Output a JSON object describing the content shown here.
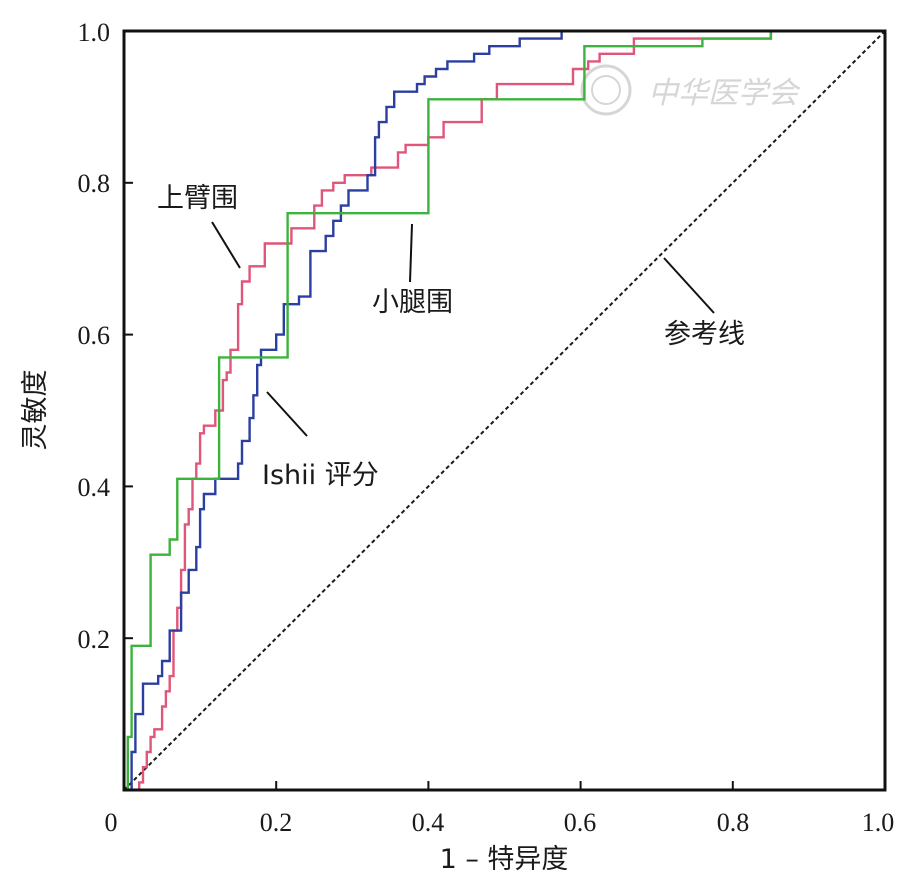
{
  "chart_data": {
    "type": "line",
    "xlabel": "1 – 特异度",
    "ylabel": "灵敏度",
    "xlim": [
      0,
      1
    ],
    "ylim": [
      0,
      1
    ],
    "x_ticks": [
      "0",
      "0.2",
      "0.4",
      "0.6",
      "0.8",
      "1.0"
    ],
    "y_ticks": [
      "0.2",
      "0.4",
      "0.6",
      "0.8",
      "1.0"
    ],
    "grid": false,
    "legend": "none",
    "watermark": "中华医学会",
    "series": [
      {
        "name": "Ishii 评分",
        "color": "#2b3fa0",
        "points": [
          [
            0,
            0
          ],
          [
            0.01,
            0
          ],
          [
            0.01,
            0.05
          ],
          [
            0.015,
            0.05
          ],
          [
            0.015,
            0.1
          ],
          [
            0.025,
            0.1
          ],
          [
            0.025,
            0.14
          ],
          [
            0.045,
            0.14
          ],
          [
            0.045,
            0.15
          ],
          [
            0.05,
            0.15
          ],
          [
            0.05,
            0.17
          ],
          [
            0.06,
            0.17
          ],
          [
            0.06,
            0.21
          ],
          [
            0.075,
            0.21
          ],
          [
            0.075,
            0.26
          ],
          [
            0.085,
            0.26
          ],
          [
            0.085,
            0.29
          ],
          [
            0.095,
            0.29
          ],
          [
            0.095,
            0.32
          ],
          [
            0.1,
            0.32
          ],
          [
            0.1,
            0.37
          ],
          [
            0.105,
            0.37
          ],
          [
            0.105,
            0.39
          ],
          [
            0.12,
            0.39
          ],
          [
            0.12,
            0.41
          ],
          [
            0.15,
            0.41
          ],
          [
            0.15,
            0.43
          ],
          [
            0.155,
            0.43
          ],
          [
            0.155,
            0.46
          ],
          [
            0.165,
            0.46
          ],
          [
            0.165,
            0.49
          ],
          [
            0.17,
            0.49
          ],
          [
            0.17,
            0.52
          ],
          [
            0.175,
            0.52
          ],
          [
            0.175,
            0.56
          ],
          [
            0.18,
            0.56
          ],
          [
            0.18,
            0.58
          ],
          [
            0.2,
            0.58
          ],
          [
            0.2,
            0.6
          ],
          [
            0.21,
            0.6
          ],
          [
            0.21,
            0.64
          ],
          [
            0.23,
            0.64
          ],
          [
            0.23,
            0.65
          ],
          [
            0.245,
            0.65
          ],
          [
            0.245,
            0.71
          ],
          [
            0.265,
            0.71
          ],
          [
            0.265,
            0.73
          ],
          [
            0.275,
            0.73
          ],
          [
            0.275,
            0.75
          ],
          [
            0.285,
            0.75
          ],
          [
            0.285,
            0.77
          ],
          [
            0.295,
            0.77
          ],
          [
            0.295,
            0.79
          ],
          [
            0.32,
            0.79
          ],
          [
            0.32,
            0.81
          ],
          [
            0.33,
            0.81
          ],
          [
            0.33,
            0.86
          ],
          [
            0.335,
            0.86
          ],
          [
            0.335,
            0.88
          ],
          [
            0.345,
            0.88
          ],
          [
            0.345,
            0.9
          ],
          [
            0.355,
            0.9
          ],
          [
            0.355,
            0.92
          ],
          [
            0.385,
            0.92
          ],
          [
            0.385,
            0.93
          ],
          [
            0.395,
            0.93
          ],
          [
            0.395,
            0.94
          ],
          [
            0.41,
            0.94
          ],
          [
            0.41,
            0.95
          ],
          [
            0.425,
            0.95
          ],
          [
            0.425,
            0.96
          ],
          [
            0.46,
            0.96
          ],
          [
            0.46,
            0.97
          ],
          [
            0.48,
            0.97
          ],
          [
            0.48,
            0.98
          ],
          [
            0.52,
            0.98
          ],
          [
            0.52,
            0.99
          ],
          [
            0.575,
            0.99
          ],
          [
            0.575,
            1.0
          ],
          [
            1,
            1.0
          ]
        ]
      },
      {
        "name": "上臂围",
        "color": "#e0567a",
        "points": [
          [
            0,
            0
          ],
          [
            0.02,
            0
          ],
          [
            0.02,
            0.01
          ],
          [
            0.025,
            0.01
          ],
          [
            0.025,
            0.03
          ],
          [
            0.03,
            0.03
          ],
          [
            0.03,
            0.05
          ],
          [
            0.035,
            0.05
          ],
          [
            0.035,
            0.07
          ],
          [
            0.04,
            0.07
          ],
          [
            0.04,
            0.08
          ],
          [
            0.05,
            0.08
          ],
          [
            0.05,
            0.11
          ],
          [
            0.055,
            0.11
          ],
          [
            0.055,
            0.13
          ],
          [
            0.06,
            0.13
          ],
          [
            0.06,
            0.15
          ],
          [
            0.065,
            0.15
          ],
          [
            0.065,
            0.21
          ],
          [
            0.07,
            0.21
          ],
          [
            0.07,
            0.24
          ],
          [
            0.075,
            0.24
          ],
          [
            0.075,
            0.29
          ],
          [
            0.08,
            0.29
          ],
          [
            0.08,
            0.35
          ],
          [
            0.085,
            0.35
          ],
          [
            0.085,
            0.37
          ],
          [
            0.09,
            0.37
          ],
          [
            0.09,
            0.41
          ],
          [
            0.095,
            0.41
          ],
          [
            0.095,
            0.43
          ],
          [
            0.1,
            0.43
          ],
          [
            0.1,
            0.47
          ],
          [
            0.105,
            0.47
          ],
          [
            0.105,
            0.48
          ],
          [
            0.12,
            0.48
          ],
          [
            0.12,
            0.5
          ],
          [
            0.13,
            0.5
          ],
          [
            0.13,
            0.54
          ],
          [
            0.135,
            0.54
          ],
          [
            0.135,
            0.55
          ],
          [
            0.14,
            0.55
          ],
          [
            0.14,
            0.58
          ],
          [
            0.15,
            0.58
          ],
          [
            0.15,
            0.64
          ],
          [
            0.155,
            0.64
          ],
          [
            0.155,
            0.67
          ],
          [
            0.165,
            0.67
          ],
          [
            0.165,
            0.69
          ],
          [
            0.185,
            0.69
          ],
          [
            0.185,
            0.72
          ],
          [
            0.22,
            0.72
          ],
          [
            0.22,
            0.74
          ],
          [
            0.25,
            0.74
          ],
          [
            0.25,
            0.77
          ],
          [
            0.26,
            0.77
          ],
          [
            0.26,
            0.79
          ],
          [
            0.275,
            0.79
          ],
          [
            0.275,
            0.8
          ],
          [
            0.29,
            0.8
          ],
          [
            0.29,
            0.81
          ],
          [
            0.325,
            0.81
          ],
          [
            0.325,
            0.82
          ],
          [
            0.36,
            0.82
          ],
          [
            0.36,
            0.84
          ],
          [
            0.37,
            0.84
          ],
          [
            0.37,
            0.85
          ],
          [
            0.4,
            0.85
          ],
          [
            0.4,
            0.86
          ],
          [
            0.42,
            0.86
          ],
          [
            0.42,
            0.88
          ],
          [
            0.47,
            0.88
          ],
          [
            0.47,
            0.91
          ],
          [
            0.49,
            0.91
          ],
          [
            0.49,
            0.93
          ],
          [
            0.59,
            0.93
          ],
          [
            0.59,
            0.95
          ],
          [
            0.61,
            0.95
          ],
          [
            0.61,
            0.96
          ],
          [
            0.625,
            0.96
          ],
          [
            0.625,
            0.97
          ],
          [
            0.67,
            0.97
          ],
          [
            0.67,
            0.99
          ],
          [
            0.85,
            0.99
          ],
          [
            0.85,
            1.0
          ],
          [
            1,
            1.0
          ]
        ]
      },
      {
        "name": "小腿围",
        "color": "#3cb33c",
        "points": [
          [
            0,
            0
          ],
          [
            0.005,
            0
          ],
          [
            0.005,
            0.07
          ],
          [
            0.01,
            0.07
          ],
          [
            0.01,
            0.19
          ],
          [
            0.035,
            0.19
          ],
          [
            0.035,
            0.31
          ],
          [
            0.06,
            0.31
          ],
          [
            0.06,
            0.33
          ],
          [
            0.07,
            0.33
          ],
          [
            0.07,
            0.41
          ],
          [
            0.125,
            0.41
          ],
          [
            0.125,
            0.57
          ],
          [
            0.215,
            0.57
          ],
          [
            0.215,
            0.76
          ],
          [
            0.4,
            0.76
          ],
          [
            0.4,
            0.91
          ],
          [
            0.605,
            0.91
          ],
          [
            0.605,
            0.98
          ],
          [
            0.76,
            0.98
          ],
          [
            0.76,
            0.99
          ],
          [
            0.85,
            0.99
          ],
          [
            0.85,
            1.0
          ],
          [
            1,
            1.0
          ]
        ]
      },
      {
        "name": "参考线",
        "color": "#1a1a1a",
        "dashed": true,
        "points": [
          [
            0,
            0
          ],
          [
            1,
            1
          ]
        ]
      }
    ],
    "annotations": [
      {
        "text": "上臂围",
        "series": "上臂围"
      },
      {
        "text": "小腿围",
        "series": "小腿围"
      },
      {
        "text": "Ishii 评分",
        "series": "Ishii 评分"
      },
      {
        "text": "参考线",
        "series": "参考线"
      }
    ]
  }
}
